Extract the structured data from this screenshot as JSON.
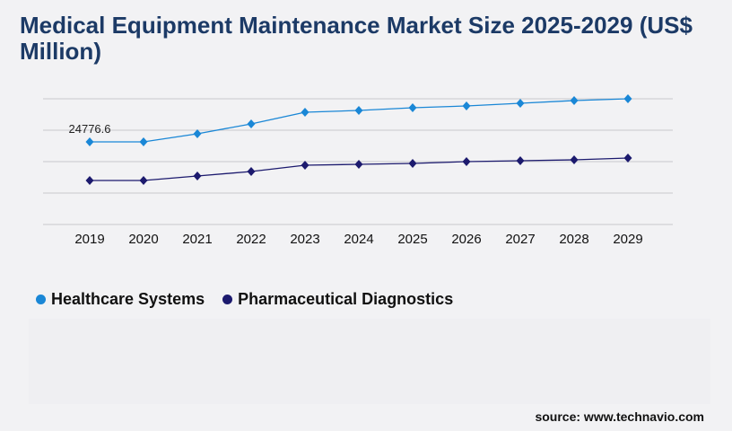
{
  "chart_data": {
    "type": "line",
    "title": "Medical Equipment Maintenance Market Size 2025-2029 (US$ Million)",
    "categories": [
      "2019",
      "2020",
      "2021",
      "2022",
      "2023",
      "2024",
      "2025",
      "2026",
      "2027",
      "2028",
      "2029"
    ],
    "series": [
      {
        "name": "Healthcare Systems",
        "color": "#1a87d6",
        "values": [
          24776.6,
          24776.6,
          27200,
          30160,
          33660,
          34200,
          35010,
          35550,
          36360,
          37160,
          37700
        ]
      },
      {
        "name": "Pharmaceutical Diagnostics",
        "color": "#1c1a6e",
        "values": [
          13200,
          13200,
          14540,
          15890,
          17770,
          18040,
          18310,
          18850,
          19120,
          19390,
          19930
        ]
      }
    ],
    "data_labels": [
      {
        "series": 0,
        "index": 0,
        "text": "24776.6"
      }
    ],
    "ylim": [
      0,
      37700
    ],
    "grid": true,
    "marker": "diamond",
    "legend_position": "bottom-left"
  },
  "source": "source: www.technavio.com"
}
